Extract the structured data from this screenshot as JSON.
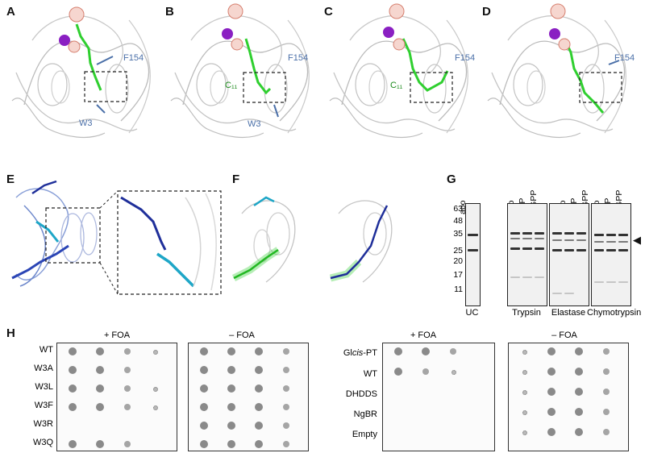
{
  "panel_labels": [
    "A",
    "B",
    "C",
    "D",
    "E",
    "F",
    "G",
    "H"
  ],
  "structure_labels": {
    "f154": "F154",
    "w3": "W3",
    "c11": "C₁₁"
  },
  "gel": {
    "lanes": [
      "apo",
      "apo",
      "FPP",
      "GGPP",
      "apo",
      "FPP",
      "GGPP",
      "apo",
      "FPP",
      "GGPP"
    ],
    "mw_markers": [
      "63",
      "48",
      "35",
      "25",
      "20",
      "17",
      "11"
    ],
    "groups": [
      "UC",
      "Trypsin",
      "Elastase",
      "Chymotrypsin"
    ],
    "arrow_glyph": "◀"
  },
  "plates": {
    "conditions": [
      "+ FOA",
      "– FOA",
      "+ FOA",
      "– FOA"
    ],
    "left_rows": [
      "WT",
      "W3A",
      "W3L",
      "W3F",
      "W3R",
      "W3Q"
    ],
    "right_rows_parts": [
      {
        "pre": "Gl",
        "it": "cis",
        "post": "-PT"
      },
      {
        "pre": "WT",
        "it": "",
        "post": ""
      },
      {
        "pre": "DHDDS",
        "it": "",
        "post": ""
      },
      {
        "pre": "NgBR",
        "it": "",
        "post": ""
      },
      {
        "pre": "Empty",
        "it": "",
        "post": ""
      }
    ]
  },
  "colors": {
    "ligand": "#2fcf2f",
    "ion": "#9a1fc2",
    "residue": "#4a6fa8",
    "dark_blue": "#1f2f9a",
    "cyan": "#1ea6c7"
  }
}
